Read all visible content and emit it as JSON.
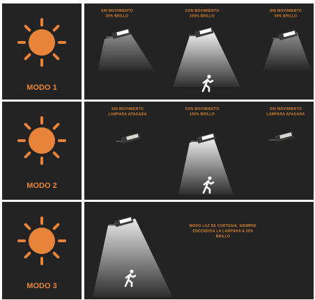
{
  "rows": [
    {
      "label": "MODO 1",
      "captions": [
        [
          "SIN MOVIMIENTO",
          "30% BRILLO"
        ],
        [
          "CON MOVIMIENTO",
          "100% BRILLO"
        ],
        [
          "SIN MOVIMIENTO",
          "30% BRILLO"
        ]
      ]
    },
    {
      "label": "MODO 2",
      "captions": [
        [
          "SIN MOVIMIENTO",
          "LAMPARA APAGADA"
        ],
        [
          "CON MOVIMIENTO",
          "100% BRILLO"
        ],
        [
          "SIN MOVIMIENTO",
          "LAMPARA APAGADA"
        ]
      ]
    },
    {
      "label": "MODO 3",
      "captions": [
        [
          "MODO LUZ DE CORTESIA, SIEMPRE",
          "ENCENDIDA LA LAMPARA A 30%",
          "BRILLO"
        ]
      ]
    }
  ]
}
